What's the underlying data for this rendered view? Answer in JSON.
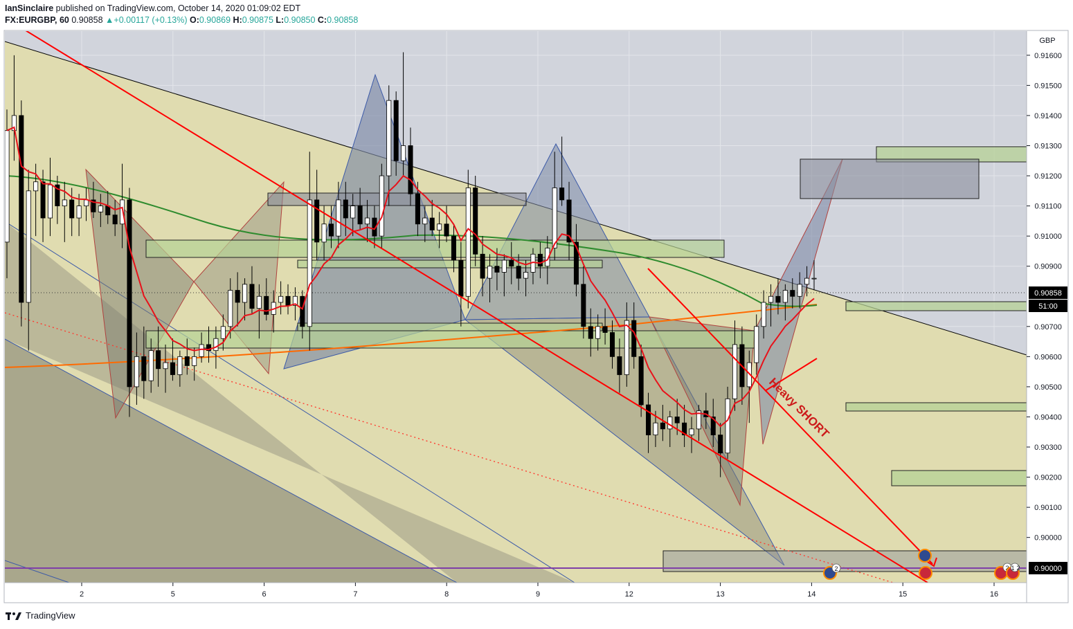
{
  "header": {
    "author": "IanSinclaire",
    "published": "published on TradingView.com, October 14, 2020 01:09:02 EDT",
    "symbol": "FX:EURGBP, 60",
    "last": "0.90858",
    "change": "+0.00117 (+0.13%)",
    "o_label": "O:",
    "o": "0.90869",
    "h_label": "H:",
    "h": "0.90875",
    "l_label": "L:",
    "l": "0.90850",
    "c_label": "C:",
    "c": "0.90858"
  },
  "footer": {
    "brand": "TradingView"
  },
  "colors": {
    "plot_bg": "#d1d4dc",
    "channel_fill": "#e0dcb0",
    "up_candle": "#ffffff",
    "down_candle": "#000000",
    "red_line": "#ff0000",
    "green_ma": "#2e8b2e",
    "orange_ma": "#ff6a00",
    "zone_fill": "#b5d196",
    "purple_line": "#7e3ea8",
    "price_tag": "#000000"
  },
  "chart_data": {
    "type": "candlestick",
    "symbol": "EURGBP",
    "interval": "60",
    "currency": "GBP",
    "y_axis": {
      "min": 0.8985,
      "max": 0.9168,
      "ticks": [
        "0.91600",
        "0.91500",
        "0.91400",
        "0.91300",
        "0.91200",
        "0.91100",
        "0.91000",
        "0.90900",
        "0.90700",
        "0.90600",
        "0.90500",
        "0.90400",
        "0.90300",
        "0.90200",
        "0.90100",
        "0.90000"
      ]
    },
    "x_axis": {
      "labels": [
        "2",
        "5",
        "6",
        "7",
        "8",
        "9",
        "12",
        "13",
        "14",
        "15",
        "16"
      ]
    },
    "last_price": "0.90858",
    "countdown": "51:00",
    "level_label": "0.90000",
    "annotation": "Heavy SHORT",
    "event_badges": [
      "2",
      "2",
      "1",
      "2"
    ],
    "ohlc": [
      [
        0.9098,
        0.9142,
        0.9086,
        0.9135
      ],
      [
        0.9135,
        0.916,
        0.9125,
        0.914
      ],
      [
        0.914,
        0.9145,
        0.907,
        0.9078
      ],
      [
        0.9078,
        0.9122,
        0.9062,
        0.9115
      ],
      [
        0.9115,
        0.9124,
        0.91,
        0.9118
      ],
      [
        0.9118,
        0.9122,
        0.9098,
        0.9106
      ],
      [
        0.9106,
        0.9126,
        0.91,
        0.9117
      ],
      [
        0.9117,
        0.912,
        0.9104,
        0.911
      ],
      [
        0.911,
        0.9118,
        0.9098,
        0.9112
      ],
      [
        0.9112,
        0.9116,
        0.91,
        0.9106
      ],
      [
        0.9106,
        0.9114,
        0.91,
        0.911
      ],
      [
        0.911,
        0.9116,
        0.9105,
        0.9112
      ],
      [
        0.9112,
        0.9118,
        0.9106,
        0.9108
      ],
      [
        0.9108,
        0.9114,
        0.9103,
        0.911
      ],
      [
        0.911,
        0.9115,
        0.9104,
        0.9107
      ],
      [
        0.9107,
        0.9112,
        0.91,
        0.9104
      ],
      [
        0.9104,
        0.9124,
        0.9096,
        0.9112
      ],
      [
        0.9112,
        0.9116,
        0.904,
        0.905
      ],
      [
        0.905,
        0.9068,
        0.9044,
        0.906
      ],
      [
        0.906,
        0.907,
        0.9046,
        0.9052
      ],
      [
        0.9052,
        0.9066,
        0.9048,
        0.9062
      ],
      [
        0.9062,
        0.907,
        0.905,
        0.9056
      ],
      [
        0.9056,
        0.9064,
        0.9048,
        0.9058
      ],
      [
        0.9058,
        0.9066,
        0.9052,
        0.9054
      ],
      [
        0.9054,
        0.9062,
        0.905,
        0.906
      ],
      [
        0.906,
        0.9066,
        0.9054,
        0.9057
      ],
      [
        0.9057,
        0.9063,
        0.9052,
        0.906
      ],
      [
        0.906,
        0.9068,
        0.9058,
        0.9064
      ],
      [
        0.9064,
        0.907,
        0.9058,
        0.9062
      ],
      [
        0.9062,
        0.907,
        0.9056,
        0.9066
      ],
      [
        0.9066,
        0.9074,
        0.9062,
        0.907
      ],
      [
        0.907,
        0.9086,
        0.9066,
        0.9082
      ],
      [
        0.9082,
        0.9088,
        0.907,
        0.9078
      ],
      [
        0.9078,
        0.9086,
        0.9072,
        0.9084
      ],
      [
        0.9084,
        0.909,
        0.9074,
        0.9076
      ],
      [
        0.9076,
        0.9084,
        0.9066,
        0.908
      ],
      [
        0.908,
        0.9086,
        0.9072,
        0.9074
      ],
      [
        0.9074,
        0.9082,
        0.9068,
        0.9078
      ],
      [
        0.9078,
        0.9085,
        0.9074,
        0.908
      ],
      [
        0.908,
        0.9084,
        0.9074,
        0.9077
      ],
      [
        0.9077,
        0.9083,
        0.9072,
        0.908
      ],
      [
        0.908,
        0.9082,
        0.9066,
        0.907
      ],
      [
        0.907,
        0.9128,
        0.9062,
        0.9112
      ],
      [
        0.9112,
        0.9122,
        0.9092,
        0.9098
      ],
      [
        0.9098,
        0.911,
        0.9092,
        0.9104
      ],
      [
        0.9104,
        0.911,
        0.9096,
        0.91
      ],
      [
        0.91,
        0.9118,
        0.9096,
        0.9112
      ],
      [
        0.9112,
        0.9118,
        0.91,
        0.9106
      ],
      [
        0.9106,
        0.9114,
        0.91,
        0.911
      ],
      [
        0.911,
        0.9116,
        0.9102,
        0.9104
      ],
      [
        0.9104,
        0.9112,
        0.9098,
        0.9106
      ],
      [
        0.9106,
        0.911,
        0.9096,
        0.91
      ],
      [
        0.91,
        0.9124,
        0.9096,
        0.912
      ],
      [
        0.912,
        0.915,
        0.911,
        0.9145
      ],
      [
        0.9145,
        0.9148,
        0.912,
        0.9125
      ],
      [
        0.9125,
        0.9161,
        0.912,
        0.913
      ],
      [
        0.913,
        0.9136,
        0.911,
        0.9114
      ],
      [
        0.9114,
        0.9118,
        0.91,
        0.9104
      ],
      [
        0.9104,
        0.911,
        0.9098,
        0.9106
      ],
      [
        0.9106,
        0.9112,
        0.91,
        0.9102
      ],
      [
        0.9102,
        0.9108,
        0.9096,
        0.9104
      ],
      [
        0.9104,
        0.911,
        0.9098,
        0.91
      ],
      [
        0.91,
        0.9104,
        0.9088,
        0.9092
      ],
      [
        0.9092,
        0.9098,
        0.907,
        0.908
      ],
      [
        0.908,
        0.9122,
        0.9076,
        0.9116
      ],
      [
        0.9116,
        0.912,
        0.909,
        0.9094
      ],
      [
        0.9094,
        0.91,
        0.908,
        0.9086
      ],
      [
        0.9086,
        0.9094,
        0.9078,
        0.909
      ],
      [
        0.909,
        0.9096,
        0.9082,
        0.9088
      ],
      [
        0.9088,
        0.9094,
        0.908,
        0.9092
      ],
      [
        0.9092,
        0.9098,
        0.9084,
        0.909
      ],
      [
        0.909,
        0.9094,
        0.9082,
        0.9086
      ],
      [
        0.9086,
        0.9092,
        0.908,
        0.9088
      ],
      [
        0.9088,
        0.9096,
        0.9084,
        0.9094
      ],
      [
        0.9094,
        0.9098,
        0.9086,
        0.909
      ],
      [
        0.909,
        0.91,
        0.9084,
        0.9096
      ],
      [
        0.9096,
        0.9128,
        0.9092,
        0.9116
      ],
      [
        0.9116,
        0.9133,
        0.911,
        0.9112
      ],
      [
        0.9112,
        0.9118,
        0.9092,
        0.9098
      ],
      [
        0.9098,
        0.9104,
        0.908,
        0.9084
      ],
      [
        0.9084,
        0.909,
        0.9066,
        0.907
      ],
      [
        0.907,
        0.9076,
        0.906,
        0.9066
      ],
      [
        0.9066,
        0.9074,
        0.9062,
        0.907
      ],
      [
        0.907,
        0.9076,
        0.9064,
        0.9068
      ],
      [
        0.9068,
        0.9072,
        0.9056,
        0.906
      ],
      [
        0.906,
        0.9066,
        0.9048,
        0.9054
      ],
      [
        0.9054,
        0.9078,
        0.905,
        0.9072
      ],
      [
        0.9072,
        0.9078,
        0.9056,
        0.906
      ],
      [
        0.906,
        0.9064,
        0.904,
        0.9044
      ],
      [
        0.9044,
        0.9048,
        0.9028,
        0.9034
      ],
      [
        0.9034,
        0.9042,
        0.903,
        0.9038
      ],
      [
        0.9038,
        0.9044,
        0.9032,
        0.9036
      ],
      [
        0.9036,
        0.9042,
        0.903,
        0.904
      ],
      [
        0.904,
        0.9046,
        0.9034,
        0.9038
      ],
      [
        0.9038,
        0.9044,
        0.903,
        0.9034
      ],
      [
        0.9034,
        0.904,
        0.9028,
        0.9036
      ],
      [
        0.9036,
        0.9044,
        0.9032,
        0.9042
      ],
      [
        0.9042,
        0.9048,
        0.9036,
        0.904
      ],
      [
        0.904,
        0.9046,
        0.903,
        0.9034
      ],
      [
        0.9034,
        0.9038,
        0.902,
        0.9028
      ],
      [
        0.9028,
        0.905,
        0.9026,
        0.9046
      ],
      [
        0.9046,
        0.9072,
        0.9042,
        0.9064
      ],
      [
        0.9064,
        0.907,
        0.9044,
        0.905
      ],
      [
        0.905,
        0.9062,
        0.9038,
        0.9058
      ],
      [
        0.9058,
        0.9074,
        0.9054,
        0.907
      ],
      [
        0.907,
        0.9082,
        0.9066,
        0.9078
      ],
      [
        0.9078,
        0.9084,
        0.907,
        0.908
      ],
      [
        0.908,
        0.9086,
        0.9074,
        0.9078
      ],
      [
        0.9078,
        0.9084,
        0.9072,
        0.9082
      ],
      [
        0.9082,
        0.9086,
        0.9076,
        0.908
      ],
      [
        0.908,
        0.9088,
        0.9076,
        0.9084
      ],
      [
        0.9084,
        0.909,
        0.908,
        0.9086
      ],
      [
        0.9086,
        0.9092,
        0.9082,
        0.9086
      ]
    ]
  }
}
